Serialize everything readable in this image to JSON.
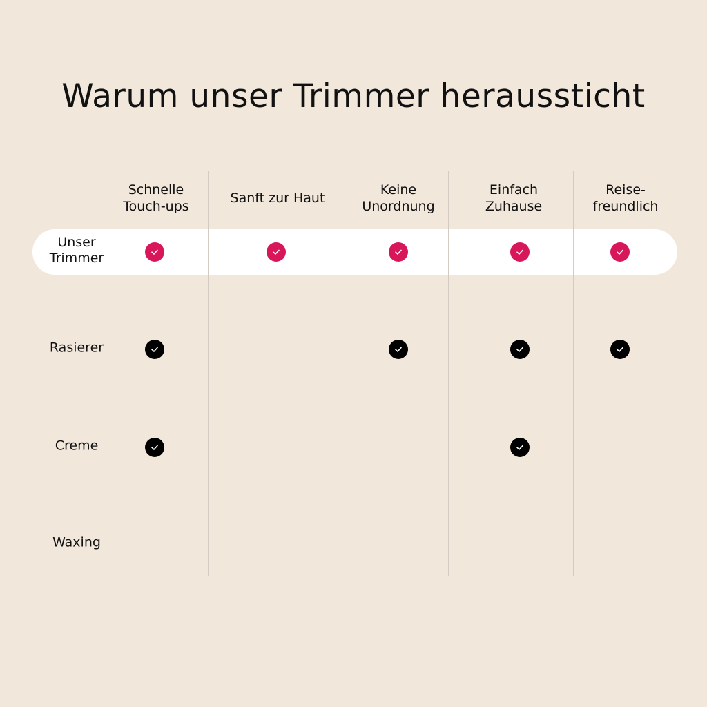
{
  "title": "Warum unser Trimmer heraussticht",
  "colors": {
    "background": "#f1e7db",
    "accent": "#d8175a",
    "check_default": "#000000"
  },
  "columns": [
    "Schnelle\nTouch-ups",
    "Sanft zur Haut",
    "Keine\nUnordnung",
    "Einfach\nZuhause",
    "Reise-\nfreundlich"
  ],
  "rows": [
    {
      "label": "Unser\nTrimmer",
      "highlighted": true,
      "checks": [
        true,
        true,
        true,
        true,
        true
      ]
    },
    {
      "label": "Rasierer",
      "highlighted": false,
      "checks": [
        true,
        false,
        true,
        true,
        true
      ]
    },
    {
      "label": "Creme",
      "highlighted": false,
      "checks": [
        true,
        false,
        false,
        true,
        false
      ]
    },
    {
      "label": "Waxing",
      "highlighted": false,
      "checks": [
        false,
        false,
        false,
        false,
        false
      ]
    }
  ]
}
